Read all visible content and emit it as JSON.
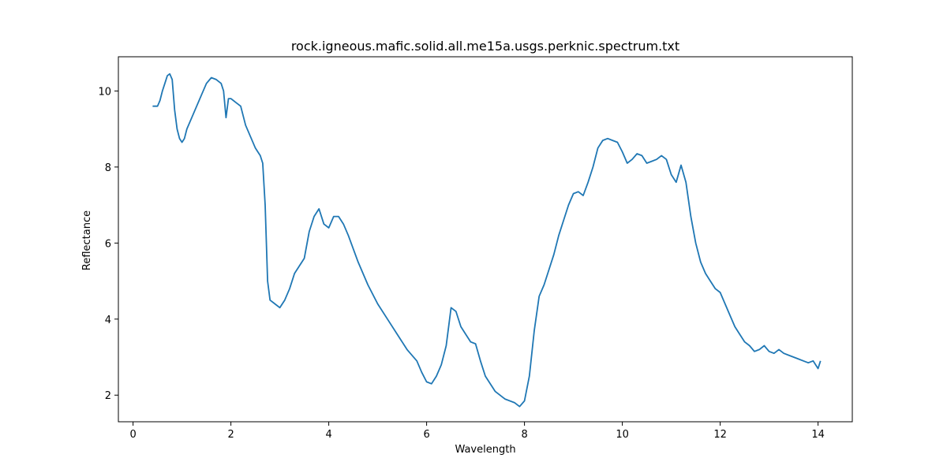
{
  "chart_data": {
    "type": "line",
    "title": "rock.igneous.mafic.solid.all.me15a.usgs.perknic.spectrum.txt",
    "xlabel": "Wavelength",
    "ylabel": "Reflectance",
    "xlim": [
      -0.3,
      14.7
    ],
    "ylim": [
      1.3,
      10.9
    ],
    "xticks": [
      0,
      2,
      4,
      6,
      8,
      10,
      12,
      14
    ],
    "yticks": [
      2,
      4,
      6,
      8,
      10
    ],
    "grid": false,
    "line_color": "#1f77b4",
    "series": [
      {
        "x": [
          0.4,
          0.5,
          0.55,
          0.6,
          0.65,
          0.7,
          0.75,
          0.8,
          0.85,
          0.9,
          0.95,
          1.0,
          1.05,
          1.1,
          1.2,
          1.3,
          1.4,
          1.5,
          1.6,
          1.7,
          1.8,
          1.85,
          1.9,
          1.95,
          2.0,
          2.1,
          2.2,
          2.3,
          2.4,
          2.5,
          2.55,
          2.6,
          2.65,
          2.7,
          2.75,
          2.8,
          2.9,
          3.0,
          3.1,
          3.2,
          3.3,
          3.4,
          3.5,
          3.6,
          3.7,
          3.8,
          3.9,
          4.0,
          4.1,
          4.2,
          4.3,
          4.4,
          4.6,
          4.8,
          5.0,
          5.2,
          5.4,
          5.6,
          5.8,
          5.9,
          6.0,
          6.1,
          6.2,
          6.3,
          6.4,
          6.5,
          6.6,
          6.7,
          6.8,
          6.9,
          7.0,
          7.1,
          7.2,
          7.4,
          7.6,
          7.8,
          7.9,
          8.0,
          8.1,
          8.2,
          8.3,
          8.4,
          8.5,
          8.6,
          8.7,
          8.8,
          8.9,
          9.0,
          9.1,
          9.2,
          9.3,
          9.4,
          9.5,
          9.6,
          9.7,
          9.8,
          9.9,
          10.0,
          10.1,
          10.2,
          10.3,
          10.4,
          10.5,
          10.6,
          10.7,
          10.8,
          10.9,
          11.0,
          11.1,
          11.2,
          11.3,
          11.4,
          11.5,
          11.6,
          11.7,
          11.8,
          11.9,
          12.0,
          12.1,
          12.2,
          12.3,
          12.4,
          12.5,
          12.6,
          12.7,
          12.8,
          12.9,
          13.0,
          13.1,
          13.2,
          13.3,
          13.4,
          13.5,
          13.6,
          13.7,
          13.8,
          13.9,
          14.0,
          14.05
        ],
        "y": [
          9.6,
          9.6,
          9.75,
          10.0,
          10.2,
          10.4,
          10.45,
          10.3,
          9.5,
          9.0,
          8.75,
          8.65,
          8.75,
          9.0,
          9.3,
          9.6,
          9.9,
          10.2,
          10.35,
          10.3,
          10.2,
          10.0,
          9.3,
          9.8,
          9.8,
          9.7,
          9.6,
          9.1,
          8.8,
          8.5,
          8.4,
          8.3,
          8.1,
          7.0,
          5.0,
          4.5,
          4.4,
          4.3,
          4.5,
          4.8,
          5.2,
          5.4,
          5.6,
          6.3,
          6.7,
          6.9,
          6.5,
          6.4,
          6.7,
          6.7,
          6.5,
          6.2,
          5.5,
          4.9,
          4.4,
          4.0,
          3.6,
          3.2,
          2.9,
          2.6,
          2.35,
          2.3,
          2.5,
          2.8,
          3.3,
          4.3,
          4.2,
          3.8,
          3.6,
          3.4,
          3.35,
          2.9,
          2.5,
          2.1,
          1.9,
          1.8,
          1.7,
          1.85,
          2.5,
          3.7,
          4.6,
          4.9,
          5.3,
          5.7,
          6.2,
          6.6,
          7.0,
          7.3,
          7.35,
          7.25,
          7.6,
          8.0,
          8.5,
          8.7,
          8.75,
          8.7,
          8.65,
          8.4,
          8.1,
          8.2,
          8.35,
          8.3,
          8.1,
          8.15,
          8.2,
          8.3,
          8.2,
          7.8,
          7.6,
          8.05,
          7.6,
          6.7,
          6.0,
          5.5,
          5.2,
          5.0,
          4.8,
          4.7,
          4.4,
          4.1,
          3.8,
          3.6,
          3.4,
          3.3,
          3.15,
          3.2,
          3.3,
          3.15,
          3.1,
          3.2,
          3.1,
          3.05,
          3.0,
          2.95,
          2.9,
          2.85,
          2.9,
          2.7,
          2.9
        ]
      }
    ]
  }
}
